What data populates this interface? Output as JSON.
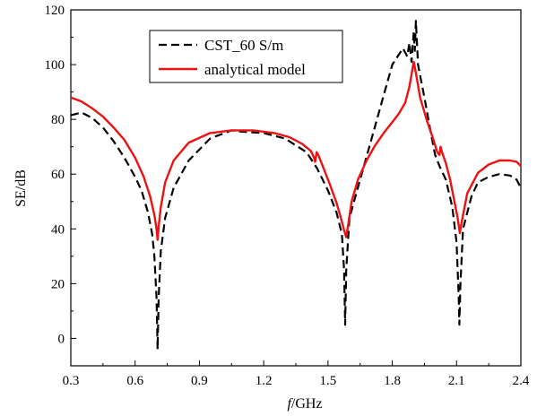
{
  "chart_data": {
    "type": "line",
    "xlabel_italic": "f",
    "xlabel_rest": "/GHz",
    "ylabel": "SE/dB",
    "xlim": [
      0.3,
      2.4
    ],
    "ylim": [
      -10,
      120
    ],
    "xticks": [
      0.3,
      0.6,
      0.9,
      1.2,
      1.5,
      1.8,
      2.1,
      2.4
    ],
    "xtick_labels": [
      "0.3",
      "0.6",
      "0.9",
      "1.2",
      "1.5",
      "1.8",
      "2.1",
      "2.4"
    ],
    "yticks": [
      0,
      20,
      40,
      60,
      80,
      100,
      120
    ],
    "ytick_labels": [
      "0",
      "20",
      "40",
      "60",
      "80",
      "100",
      "120"
    ],
    "grid": false,
    "legend_position": "top-center",
    "series": [
      {
        "name": "CST_60 S/m",
        "color": "#000000",
        "dash": "dashed",
        "points": [
          [
            0.3,
            81.5
          ],
          [
            0.35,
            82.5
          ],
          [
            0.4,
            80.5
          ],
          [
            0.45,
            77
          ],
          [
            0.5,
            72
          ],
          [
            0.55,
            66
          ],
          [
            0.6,
            59
          ],
          [
            0.63,
            54
          ],
          [
            0.66,
            46
          ],
          [
            0.68,
            38
          ],
          [
            0.69,
            30
          ],
          [
            0.7,
            15
          ],
          [
            0.705,
            -4
          ],
          [
            0.71,
            15
          ],
          [
            0.72,
            32
          ],
          [
            0.74,
            44
          ],
          [
            0.78,
            55
          ],
          [
            0.85,
            65
          ],
          [
            0.95,
            73
          ],
          [
            1.05,
            76
          ],
          [
            1.1,
            75.5
          ],
          [
            1.2,
            75
          ],
          [
            1.3,
            73
          ],
          [
            1.4,
            68
          ],
          [
            1.45,
            62
          ],
          [
            1.5,
            54
          ],
          [
            1.54,
            46
          ],
          [
            1.565,
            38
          ],
          [
            1.575,
            25
          ],
          [
            1.58,
            5
          ],
          [
            1.585,
            25
          ],
          [
            1.6,
            44
          ],
          [
            1.65,
            58
          ],
          [
            1.7,
            72
          ],
          [
            1.75,
            86
          ],
          [
            1.8,
            100
          ],
          [
            1.85,
            106
          ],
          [
            1.87,
            103
          ],
          [
            1.88,
            108
          ],
          [
            1.89,
            101
          ],
          [
            1.9,
            112
          ],
          [
            1.905,
            105
          ],
          [
            1.91,
            116
          ],
          [
            1.92,
            100
          ],
          [
            1.95,
            88
          ],
          [
            1.98,
            75
          ],
          [
            2.0,
            67
          ],
          [
            2.02,
            63
          ],
          [
            2.05,
            58
          ],
          [
            2.08,
            48
          ],
          [
            2.1,
            35
          ],
          [
            2.11,
            15
          ],
          [
            2.113,
            5
          ],
          [
            2.118,
            20
          ],
          [
            2.13,
            40
          ],
          [
            2.17,
            52
          ],
          [
            2.2,
            57
          ],
          [
            2.25,
            59
          ],
          [
            2.3,
            60
          ],
          [
            2.35,
            59.5
          ],
          [
            2.38,
            58
          ],
          [
            2.4,
            55
          ]
        ]
      },
      {
        "name": "analytical model",
        "color": "#ee1111",
        "dash": "solid",
        "points": [
          [
            0.3,
            88
          ],
          [
            0.35,
            86.5
          ],
          [
            0.4,
            84
          ],
          [
            0.45,
            81
          ],
          [
            0.5,
            77
          ],
          [
            0.55,
            72.5
          ],
          [
            0.6,
            66
          ],
          [
            0.64,
            59
          ],
          [
            0.67,
            52
          ],
          [
            0.69,
            45
          ],
          [
            0.7,
            40
          ],
          [
            0.705,
            36
          ],
          [
            0.71,
            41
          ],
          [
            0.72,
            48
          ],
          [
            0.74,
            57
          ],
          [
            0.78,
            65
          ],
          [
            0.85,
            71.5
          ],
          [
            0.95,
            75
          ],
          [
            1.05,
            76
          ],
          [
            1.15,
            76
          ],
          [
            1.25,
            75
          ],
          [
            1.32,
            73.5
          ],
          [
            1.38,
            71
          ],
          [
            1.42,
            68.5
          ],
          [
            1.435,
            66
          ],
          [
            1.44,
            64.5
          ],
          [
            1.447,
            68
          ],
          [
            1.455,
            67
          ],
          [
            1.48,
            62
          ],
          [
            1.51,
            56
          ],
          [
            1.54,
            49.5
          ],
          [
            1.56,
            44
          ],
          [
            1.575,
            39.5
          ],
          [
            1.585,
            37
          ],
          [
            1.595,
            42
          ],
          [
            1.61,
            50
          ],
          [
            1.64,
            58
          ],
          [
            1.68,
            65
          ],
          [
            1.72,
            70.5
          ],
          [
            1.76,
            75
          ],
          [
            1.8,
            79
          ],
          [
            1.83,
            82
          ],
          [
            1.86,
            86
          ],
          [
            1.88,
            92
          ],
          [
            1.9,
            101
          ],
          [
            1.91,
            97
          ],
          [
            1.93,
            88
          ],
          [
            1.96,
            80
          ],
          [
            1.99,
            73
          ],
          [
            2.01,
            68
          ],
          [
            2.02,
            67
          ],
          [
            2.025,
            70
          ],
          [
            2.03,
            68.5
          ],
          [
            2.05,
            64
          ],
          [
            2.07,
            58
          ],
          [
            2.09,
            50
          ],
          [
            2.105,
            44
          ],
          [
            2.115,
            38.5
          ],
          [
            2.125,
            43
          ],
          [
            2.15,
            53
          ],
          [
            2.2,
            60.5
          ],
          [
            2.25,
            63.5
          ],
          [
            2.3,
            65
          ],
          [
            2.35,
            65
          ],
          [
            2.38,
            64.5
          ],
          [
            2.4,
            63
          ]
        ]
      }
    ]
  }
}
